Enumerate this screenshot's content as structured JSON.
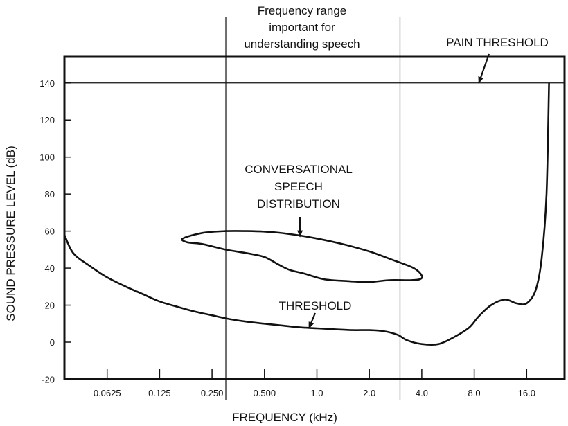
{
  "chart_data": {
    "type": "line",
    "xlabel": "FREQUENCY (kHz)",
    "ylabel": "SOUND PRESSURE LEVEL (dB)",
    "x_scale": "log2",
    "xlim": [
      0.0312,
      22.6
    ],
    "ylim": [
      -20,
      155
    ],
    "x_ticks": [
      {
        "value": 0.0625,
        "label": "0.0625"
      },
      {
        "value": 0.125,
        "label": "0.125"
      },
      {
        "value": 0.25,
        "label": "0.250"
      },
      {
        "value": 0.5,
        "label": "0.500"
      },
      {
        "value": 1.0,
        "label": "1.0"
      },
      {
        "value": 2.0,
        "label": "2.0"
      },
      {
        "value": 4.0,
        "label": "4.0"
      },
      {
        "value": 8.0,
        "label": "8.0"
      },
      {
        "value": 16.0,
        "label": "16.0"
      }
    ],
    "y_ticks": [
      {
        "value": 140,
        "label": "140"
      },
      {
        "value": 120,
        "label": "120"
      },
      {
        "value": 100,
        "label": "100"
      },
      {
        "value": 80,
        "label": "80"
      },
      {
        "value": 60,
        "label": "60"
      },
      {
        "value": 40,
        "label": "40"
      },
      {
        "value": 20,
        "label": "20"
      },
      {
        "value": 0,
        "label": "0"
      },
      {
        "value": -20,
        "label": "-20"
      }
    ],
    "grid": false,
    "pain_threshold_level": 140,
    "speech_range": {
      "x_range": [
        0.3,
        3.0
      ],
      "label_lines": [
        "Frequency range",
        "important for",
        "understanding speech"
      ]
    },
    "series": [
      {
        "name": "THRESHOLD",
        "x": [
          0.031,
          0.04,
          0.05,
          0.0625,
          0.08,
          0.1,
          0.125,
          0.16,
          0.2,
          0.25,
          0.315,
          0.4,
          0.5,
          0.63,
          0.8,
          1.0,
          1.25,
          1.6,
          2.0,
          2.4,
          2.9,
          3.3,
          4.0,
          5.0,
          6.2,
          7.5,
          8.5,
          10.0,
          12.0,
          14.0,
          16.0,
          18.0,
          19.5,
          20.8,
          21.5
        ],
        "y": [
          58,
          48,
          41,
          35,
          30,
          26,
          22,
          19,
          16.5,
          14.5,
          12.5,
          11,
          10,
          9,
          8,
          7.5,
          7,
          6.5,
          6.5,
          6,
          4,
          1,
          -1,
          -1,
          3,
          8,
          14,
          20,
          23,
          21,
          21,
          28,
          45,
          80,
          140
        ]
      },
      {
        "name": "CONVERSATIONAL SPEECH DISTRIBUTION",
        "closed": true,
        "x": [
          0.17,
          0.22,
          0.3,
          0.4,
          0.55,
          0.75,
          1.0,
          1.4,
          2.0,
          2.8,
          3.6,
          4.0,
          3.9,
          3.4,
          2.6,
          2.0,
          1.5,
          1.1,
          0.85,
          0.7,
          0.6,
          0.5,
          0.4,
          0.3,
          0.22,
          0.18,
          0.17
        ],
        "y": [
          56,
          59,
          60,
          60,
          59.5,
          58,
          56,
          53,
          49,
          44,
          40,
          36,
          34,
          33.5,
          33.5,
          32.5,
          33,
          34,
          37,
          39,
          42,
          46,
          48,
          50,
          53,
          54,
          56
        ]
      }
    ],
    "annotations": [
      {
        "id": "pain",
        "lines": [
          "PAIN THRESHOLD"
        ],
        "arrow_to": {
          "x": 8.5,
          "y": 140
        }
      },
      {
        "id": "speech",
        "lines": [
          "CONVERSATIONAL",
          "SPEECH",
          "DISTRIBUTION"
        ],
        "arrow_to": {
          "x": 0.8,
          "y": 57
        }
      },
      {
        "id": "threshold",
        "lines": [
          "THRESHOLD"
        ],
        "arrow_to": {
          "x": 0.9,
          "y": 7.5
        }
      }
    ]
  }
}
